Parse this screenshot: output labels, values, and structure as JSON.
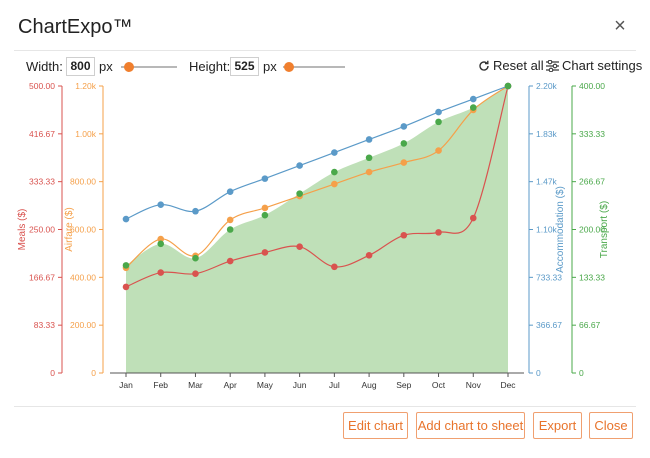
{
  "header": {
    "title": "ChartExpo™",
    "close_label": "×"
  },
  "controls": {
    "width_label": "Width:",
    "width_value": "800",
    "width_unit": "px",
    "height_label": "Height:",
    "height_value": "525",
    "height_unit": "px",
    "reset_label": "Reset all",
    "settings_label": "Chart settings",
    "accent_color": "#f07f2e"
  },
  "footer": {
    "edit_label": "Edit chart",
    "add_label": "Add chart to sheet",
    "export_label": "Export",
    "close_label": "Close"
  },
  "chart_data": {
    "type": "line",
    "categories": [
      "Jan",
      "Feb",
      "Mar",
      "Apr",
      "May",
      "Jun",
      "Jul",
      "Aug",
      "Sep",
      "Oct",
      "Nov",
      "Dec"
    ],
    "series": [
      {
        "name": "Meals ($)",
        "color": "#d9534f",
        "values": [
          150,
          175,
          173,
          195,
          210,
          220,
          185,
          205,
          240,
          245,
          270,
          500
        ],
        "axis": {
          "min": 0,
          "max": 500,
          "ticks": [
            "0",
            "83.33",
            "166.67",
            "250.00",
            "333.33",
            "416.67",
            "500.00"
          ]
        }
      },
      {
        "name": "Airfare ($)",
        "color": "#f5a04a",
        "values": [
          440,
          560,
          490,
          640,
          690,
          740,
          790,
          840,
          880,
          930,
          1100,
          1200
        ],
        "axis": {
          "min": 0,
          "max": 1200,
          "ticks": [
            "0",
            "200.00",
            "400.00",
            "600.00",
            "800.00",
            "1.00k",
            "1.20k"
          ]
        }
      },
      {
        "name": "Accommodation ($)",
        "color": "#5b9ac8",
        "values": [
          1180,
          1290,
          1240,
          1390,
          1490,
          1590,
          1690,
          1790,
          1890,
          2000,
          2100,
          2200
        ],
        "axis": {
          "min": 0,
          "max": 2200,
          "ticks": [
            "0",
            "366.67",
            "733.33",
            "1.10k",
            "1.47k",
            "1.83k",
            "2.20k"
          ]
        }
      },
      {
        "name": "Transport ($)",
        "color": "#4aa84a",
        "fill": "#bfe0b8",
        "area": true,
        "values": [
          150,
          180,
          160,
          200,
          220,
          250,
          280,
          300,
          320,
          350,
          370,
          400
        ],
        "axis": {
          "min": 0,
          "max": 400,
          "ticks": [
            "0",
            "66.67",
            "133.33",
            "200.00",
            "266.67",
            "333.33",
            "400.00"
          ]
        }
      }
    ]
  }
}
